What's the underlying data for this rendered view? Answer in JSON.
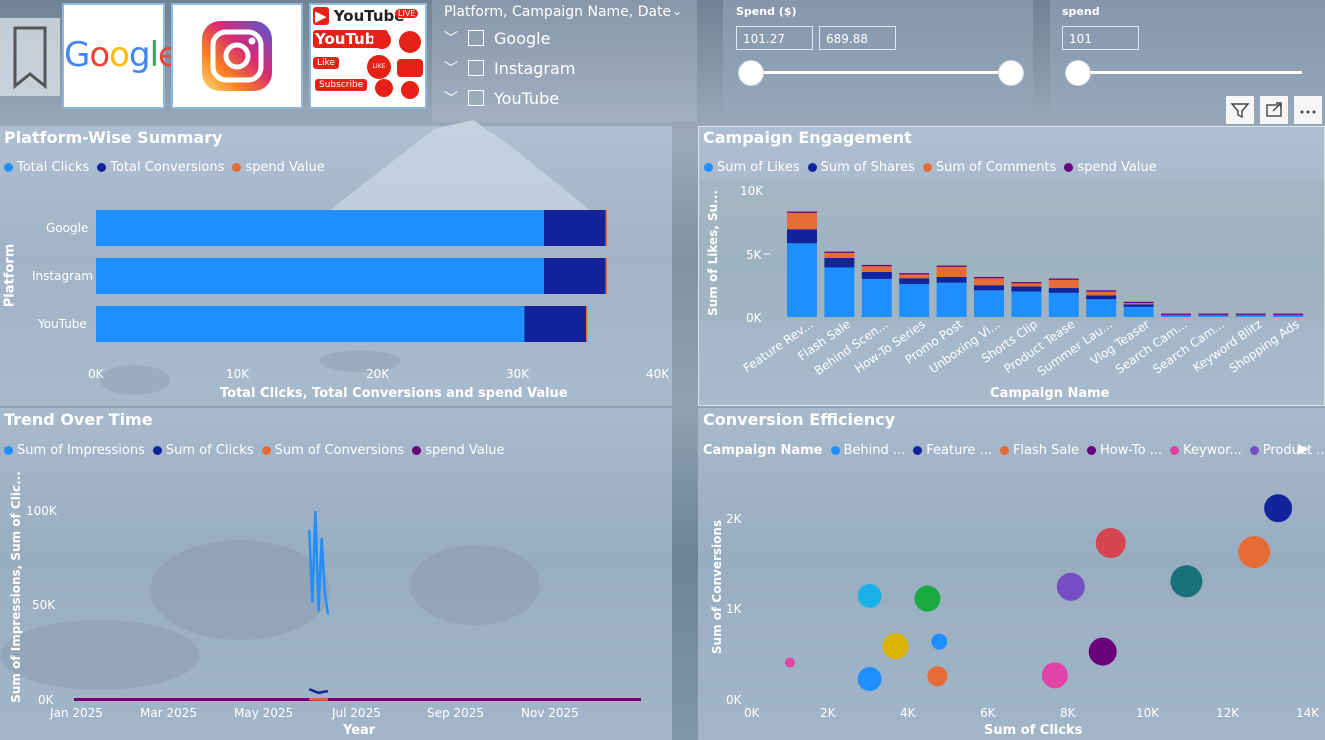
{
  "bookmark": {
    "icon": "bookmark-icon"
  },
  "logos": {
    "google": "Google",
    "youtube_texts": [
      "YouTube",
      "YouTube",
      "Like",
      "LIKE",
      "Subscribe",
      "LIVE"
    ]
  },
  "platform_slicer": {
    "header": "Platform, Campaign Name, Date",
    "items": [
      "Google",
      "Instagram",
      "YouTube"
    ]
  },
  "spend_slicer": {
    "title": "Spend ($)",
    "min": "101.27",
    "max": "689.88"
  },
  "spend_single": {
    "title": "spend",
    "value": "101"
  },
  "toolbar": {
    "icons": [
      "filter-icon",
      "focus-mode-icon",
      "more-options-icon"
    ]
  },
  "platform_summary": {
    "title": "Platform-Wise Summary",
    "legend": [
      "Total Clicks",
      "Total Conversions",
      "spend Value"
    ],
    "yaxis_title": "Platform",
    "xaxis_title": "Total Clicks, Total Conversions and spend Value",
    "xticks": [
      "0K",
      "10K",
      "20K",
      "30K",
      "40K"
    ],
    "categories": [
      "Google",
      "Instagram",
      "YouTube"
    ]
  },
  "campaign_engagement": {
    "title": "Campaign Engagement",
    "legend": [
      "Sum of Likes",
      "Sum of Shares",
      "Sum of Comments",
      "spend Value"
    ],
    "yaxis_title": "Sum of Likes, Su...",
    "xaxis_title": "Campaign Name",
    "yticks": [
      "10K",
      "5K",
      "0K"
    ],
    "categories": [
      "Feature Rev...",
      "Flash Sale",
      "Behind Scen...",
      "How-To Series",
      "Promo Post",
      "Unboxing Vi...",
      "Shorts Clip",
      "Product Tease",
      "Summer Lau...",
      "Vlog Teaser",
      "Search Cam...",
      "Search Cam...",
      "Keyword Blitz",
      "Shopping Ads"
    ]
  },
  "trend": {
    "title": "Trend Over Time",
    "legend": [
      "Sum of Impressions",
      "Sum of Clicks",
      "Sum of Conversions",
      "spend Value"
    ],
    "yaxis_title": "Sum of Impressions, Sum of Clic...",
    "xaxis_title": "Year",
    "yticks": [
      "100K",
      "50K",
      "0K"
    ],
    "xticks": [
      "Jan 2025",
      "Mar 2025",
      "May 2025",
      "Jul 2025",
      "Sep 2025",
      "Nov 2025"
    ]
  },
  "conversion": {
    "title": "Conversion Efficiency",
    "legend_label": "Campaign Name",
    "legend": [
      "Behind ...",
      "Feature ...",
      "Flash Sale",
      "How-To ...",
      "Keywor...",
      "Product ..."
    ],
    "yaxis_title": "Sum of Conversions",
    "xaxis_title": "Sum of Clicks",
    "yticks": [
      "2K",
      "1K",
      "0K"
    ],
    "xticks": [
      "0K",
      "2K",
      "4K",
      "6K",
      "8K",
      "10K",
      "12K",
      "14K"
    ]
  },
  "colors": {
    "clicks": "#1f8fff",
    "conversions": "#12239e",
    "spend": "#e66c37",
    "purple": "#6b007b"
  },
  "chart_data": [
    {
      "type": "bar",
      "title": "Platform-Wise Summary",
      "orientation": "horizontal",
      "categories": [
        "Google",
        "Instagram",
        "YouTube"
      ],
      "series": [
        {
          "name": "Total Clicks",
          "values": [
            32000,
            32000,
            30600
          ]
        },
        {
          "name": "Total Conversions",
          "values": [
            4400,
            4400,
            4400
          ]
        },
        {
          "name": "spend Value",
          "values": [
            100,
            100,
            100
          ]
        }
      ],
      "xlim": [
        0,
        40000
      ],
      "xlabel": "Total Clicks, Total Conversions and spend Value",
      "ylabel": "Platform"
    },
    {
      "type": "bar",
      "title": "Campaign Engagement",
      "stacked": true,
      "categories": [
        "Feature Rev...",
        "Flash Sale",
        "Behind Scen...",
        "How-To Series",
        "Promo Post",
        "Unboxing Vi...",
        "Shorts Clip",
        "Product Tease",
        "Summer Lau...",
        "Vlog Teaser",
        "Search Cam...",
        "Search Cam...",
        "Keyword Blitz",
        "Shopping Ads"
      ],
      "series": [
        {
          "name": "Sum of Likes",
          "values": [
            5800,
            3900,
            3000,
            2600,
            2700,
            2100,
            2000,
            1900,
            1400,
            800,
            100,
            100,
            100,
            100
          ]
        },
        {
          "name": "Sum of Shares",
          "values": [
            1100,
            750,
            550,
            450,
            450,
            400,
            400,
            380,
            300,
            200,
            50,
            50,
            50,
            50
          ]
        },
        {
          "name": "Sum of Comments",
          "values": [
            1300,
            400,
            450,
            300,
            800,
            550,
            250,
            650,
            300,
            100,
            20,
            20,
            20,
            20
          ]
        },
        {
          "name": "spend Value",
          "values": [
            100,
            100,
            100,
            100,
            100,
            100,
            100,
            100,
            100,
            100,
            100,
            100,
            100,
            100
          ]
        }
      ],
      "ylim": [
        0,
        10000
      ],
      "xlabel": "Campaign Name"
    },
    {
      "type": "line",
      "title": "Trend Over Time",
      "x_range": [
        "2025-01-01",
        "2025-12-31"
      ],
      "series": [
        {
          "name": "Sum of Impressions",
          "x": [
            "2025-06-01",
            "2025-06-03",
            "2025-06-05",
            "2025-06-07",
            "2025-06-09",
            "2025-06-11",
            "2025-06-13"
          ],
          "values": [
            95000,
            55000,
            105000,
            50000,
            90000,
            60000,
            48000
          ]
        },
        {
          "name": "Sum of Clicks",
          "x": [
            "2025-06-01",
            "2025-06-07",
            "2025-06-13"
          ],
          "values": [
            6000,
            4000,
            5000
          ]
        },
        {
          "name": "Sum of Conversions",
          "x": [
            "2025-06-01",
            "2025-06-13"
          ],
          "values": [
            400,
            300
          ]
        },
        {
          "name": "spend Value",
          "x": [
            "2025-01-01",
            "2025-12-31"
          ],
          "values": [
            300,
            300
          ]
        }
      ],
      "ylim": [
        0,
        110000
      ],
      "xlabel": "Year"
    },
    {
      "type": "scatter",
      "title": "Conversion Efficiency",
      "xlabel": "Sum of Clicks",
      "ylabel": "Sum of Conversions",
      "xlim": [
        0,
        14000
      ],
      "ylim": [
        0,
        2300
      ],
      "points": [
        {
          "x": 13200,
          "y": 2100,
          "size": 14,
          "color": "#12239e"
        },
        {
          "x": 9000,
          "y": 1720,
          "size": 15,
          "color": "#d64550"
        },
        {
          "x": 12600,
          "y": 1620,
          "size": 16,
          "color": "#e66c37"
        },
        {
          "x": 10900,
          "y": 1300,
          "size": 16,
          "color": "#197278"
        },
        {
          "x": 8000,
          "y": 1240,
          "size": 14,
          "color": "#744ec2"
        },
        {
          "x": 2950,
          "y": 1140,
          "size": 12,
          "color": "#1ab0e8"
        },
        {
          "x": 4400,
          "y": 1110,
          "size": 13,
          "color": "#1aab40"
        },
        {
          "x": 4700,
          "y": 640,
          "size": 8,
          "color": "#1f8fff"
        },
        {
          "x": 3600,
          "y": 590,
          "size": 13,
          "color": "#d9b300"
        },
        {
          "x": 8800,
          "y": 530,
          "size": 14,
          "color": "#6b007b"
        },
        {
          "x": 950,
          "y": 410,
          "size": 5,
          "color": "#e044a7"
        },
        {
          "x": 7600,
          "y": 270,
          "size": 13,
          "color": "#e044a7"
        },
        {
          "x": 2950,
          "y": 230,
          "size": 12,
          "color": "#1f8fff"
        },
        {
          "x": 4650,
          "y": 260,
          "size": 10,
          "color": "#e66c37"
        }
      ]
    }
  ]
}
